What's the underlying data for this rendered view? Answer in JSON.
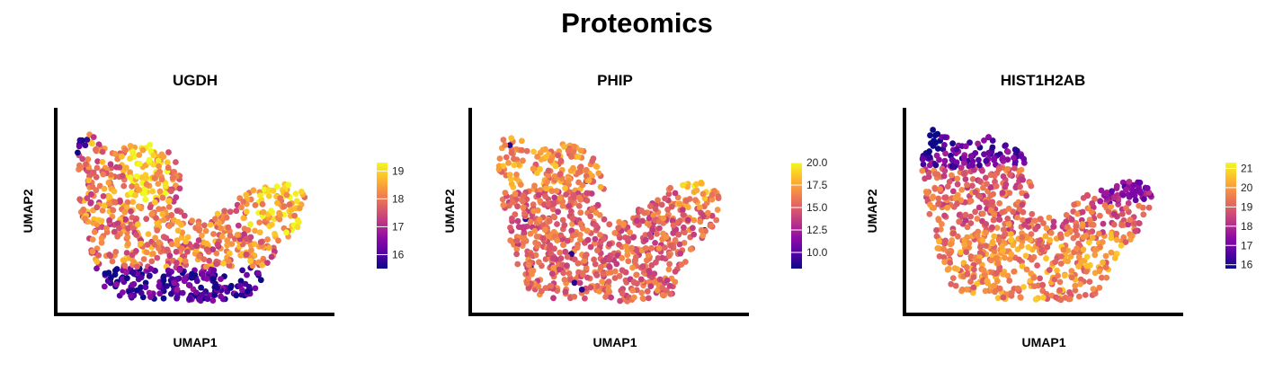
{
  "title": "Proteomics",
  "chart_data": [
    {
      "type": "scatter",
      "title": "UGDH",
      "xlabel": "UMAP1",
      "ylabel": "UMAP2",
      "colorscale": "plasma",
      "color_range": [
        15.5,
        19.3
      ],
      "colorbar_ticks": [
        16,
        17,
        18,
        19
      ],
      "colorbar_tick_labels": [
        "16",
        "17",
        "18",
        "19"
      ],
      "grid": false,
      "legend_position": "right"
    },
    {
      "type": "scatter",
      "title": "PHIP",
      "xlabel": "UMAP1",
      "ylabel": "UMAP2",
      "colorscale": "plasma",
      "color_range": [
        8.2,
        20.0
      ],
      "colorbar_ticks": [
        10.0,
        12.5,
        15.0,
        17.5,
        20.0
      ],
      "colorbar_tick_labels": [
        "10.0",
        "12.5",
        "15.0",
        "17.5",
        "20.0"
      ],
      "grid": false,
      "legend_position": "right"
    },
    {
      "type": "scatter",
      "title": "HIST1H2AB",
      "xlabel": "UMAP1",
      "ylabel": "UMAP2",
      "colorscale": "plasma",
      "color_range": [
        15.8,
        21.3
      ],
      "colorbar_ticks": [
        16,
        17,
        18,
        19,
        20,
        21
      ],
      "colorbar_tick_labels": [
        "16",
        "17",
        "18",
        "19",
        "20",
        "21"
      ],
      "grid": false,
      "legend_position": "right"
    }
  ]
}
